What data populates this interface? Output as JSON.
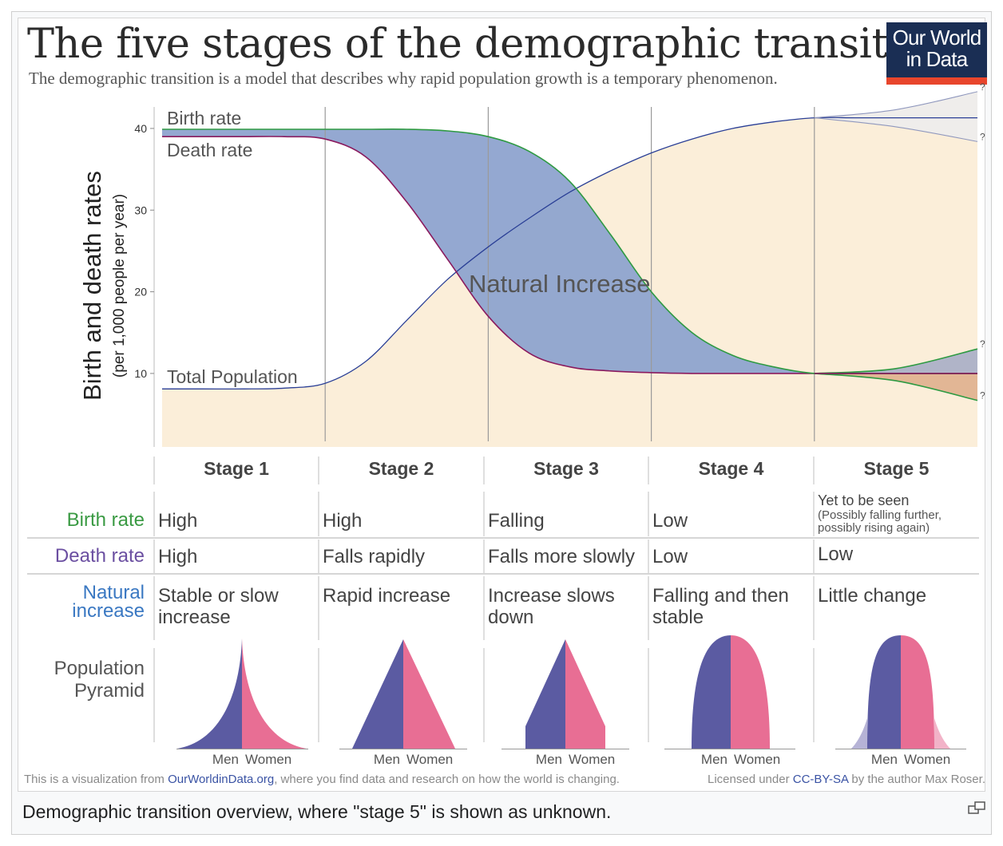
{
  "title": "The five stages of the demographic transition",
  "subtitle": "The demographic transition is a model that describes why rapid population growth is a temporary phenomenon.",
  "logo": {
    "line1": "Our World",
    "line2": "in Data",
    "accent": "#e8452c",
    "background": "#1a2e54"
  },
  "chart_data": {
    "type": "line",
    "title": "The five stages of the demographic transition",
    "ylabel": "Birth and death rates",
    "ylabel_sub": "(per 1,000 people per year)",
    "ylim": [
      1,
      44
    ],
    "yticks": [
      10,
      20,
      30,
      40
    ],
    "xlim": [
      0,
      5
    ],
    "stage_boundaries": [
      1,
      2,
      3,
      4
    ],
    "x": [
      0,
      0.25,
      0.5,
      0.75,
      1,
      1.25,
      1.5,
      1.75,
      2,
      2.25,
      2.5,
      2.75,
      3,
      3.25,
      3.5,
      3.75,
      4,
      4.25,
      4.5,
      4.75,
      5
    ],
    "series": [
      {
        "name": "Birth rate",
        "color": "#2e9a42",
        "values": [
          39.9,
          39.9,
          39.9,
          39.9,
          39.9,
          39.9,
          39.9,
          39.7,
          39,
          37.2,
          33.5,
          27,
          20,
          15,
          12.2,
          10.8,
          10,
          10,
          10,
          10,
          10
        ]
      },
      {
        "name": "Death rate",
        "color": "#8a1a5e",
        "values": [
          39,
          39,
          39,
          39,
          38.7,
          36.5,
          31,
          24,
          17,
          12.5,
          10.8,
          10.3,
          10.1,
          10,
          10,
          10,
          10,
          10,
          10,
          10,
          10
        ]
      },
      {
        "name": "Total Population",
        "color": "#2a3f96",
        "values": [
          8.1,
          8.1,
          8.1,
          8.2,
          8.8,
          11.5,
          16.5,
          21.5,
          25.5,
          29,
          32.2,
          34.8,
          37,
          38.7,
          40,
          40.8,
          41.3,
          41.3,
          41.3,
          41.3,
          41.3
        ]
      }
    ],
    "stage5_scenarios": {
      "population_upper": [
        41.3,
        42.3,
        44.5
      ],
      "population_lower": [
        41.3,
        40.2,
        38.4
      ],
      "birth_upper": [
        10,
        10.6,
        13
      ],
      "birth_lower": [
        10,
        9.1,
        6.7
      ],
      "x": [
        4,
        4.5,
        5
      ],
      "unknown_mark": "?"
    },
    "annotations": {
      "birth_rate": "Birth rate",
      "death_rate": "Death rate",
      "total_population": "Total Population",
      "natural_increase": "Natural Increase"
    },
    "colors": {
      "natural_increase_fill": "#8ea3cf",
      "population_fill": "#fbeed9",
      "stage5_pop_fill": "#efedeb",
      "stage5_decrease_fill": "#e2b695",
      "label_birth": "#3a9a43",
      "label_death": "#6b4fa1",
      "label_natural": "#3a78c2",
      "men": "#5b5ba2",
      "women": "#e86e94"
    }
  },
  "table": {
    "stages": [
      "Stage 1",
      "Stage 2",
      "Stage 3",
      "Stage 4",
      "Stage 5"
    ],
    "rows": [
      {
        "label": "Birth rate",
        "cells": [
          "High",
          "High",
          "Falling",
          "Low",
          "Yet to be seen"
        ],
        "note": "(Possibly falling further, possibly rising again)"
      },
      {
        "label": "Death rate",
        "cells": [
          "High",
          "Falls rapidly",
          "Falls more slowly",
          "Low",
          "Low"
        ]
      },
      {
        "label_line1": "Natural",
        "label_line2": "increase",
        "cells_line1": [
          "Stable or slow",
          "Rapid increase",
          "Increase slows",
          "Falling and then",
          "Little change"
        ],
        "cells_line2": [
          "increase",
          "",
          "down",
          "stable",
          ""
        ]
      }
    ],
    "pyramid_label_line1": "Population",
    "pyramid_label_line2": "Pyramid",
    "pyramid_men": "Men",
    "pyramid_women": "Women"
  },
  "footer": {
    "left_pre": "This is a visualization from ",
    "left_link": "OurWorldinData.org",
    "left_post": ", where you find data and research on how the world is changing.",
    "right_pre": "Licensed under ",
    "right_link": "CC-BY-SA",
    "right_post": " by the author Max Roser."
  },
  "caption": "Demographic transition overview, where \"stage 5\" is shown as unknown."
}
